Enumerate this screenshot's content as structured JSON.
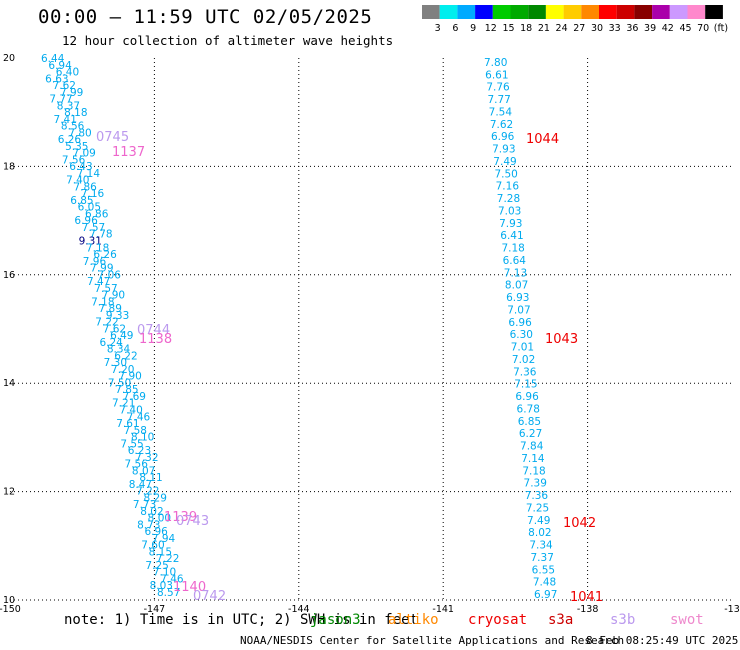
{
  "header": {
    "title": "00:00 – 11:59 UTC 02/05/2025",
    "subtitle": "12 hour collection of altimeter wave heights"
  },
  "color_scale": {
    "unit": "(ft)",
    "bins": [
      {
        "label": "3",
        "color": "#808080"
      },
      {
        "label": "6",
        "color": "#00eeee"
      },
      {
        "label": "9",
        "color": "#00aaff"
      },
      {
        "label": "12",
        "color": "#0000ff"
      },
      {
        "label": "15",
        "color": "#00cc00"
      },
      {
        "label": "18",
        "color": "#00aa00"
      },
      {
        "label": "21",
        "color": "#008800"
      },
      {
        "label": "24",
        "color": "#ffff00"
      },
      {
        "label": "27",
        "color": "#ffcc00"
      },
      {
        "label": "30",
        "color": "#ff8800"
      },
      {
        "label": "33",
        "color": "#ff0000"
      },
      {
        "label": "36",
        "color": "#cc0000"
      },
      {
        "label": "39",
        "color": "#880000"
      },
      {
        "label": "42",
        "color": "#aa00aa"
      },
      {
        "label": "45",
        "color": "#cc99ff"
      },
      {
        "label": "70",
        "color": "#ff88cc"
      },
      {
        "label": "",
        "color": "#000000"
      }
    ]
  },
  "map": {
    "lon_range": [
      -150,
      -135
    ],
    "lat_range": [
      10,
      20
    ],
    "x_ticks": [
      "-150",
      "-147",
      "-144",
      "-141",
      "-138",
      "-13"
    ],
    "y_ticks": [
      "20",
      "18",
      "16",
      "14",
      "12",
      "10"
    ],
    "track_a": {
      "color": "#00aaee",
      "values": [
        "6.44",
        "6.94",
        "6.40",
        "6.63",
        "7.62",
        "7.99",
        "7.77",
        "8.37",
        "8.18",
        "7.41",
        "8.56",
        "7.80",
        "6.26",
        "5.35",
        "7.09",
        "7.56",
        "6.43",
        "7.14",
        "7.40",
        "7.86",
        "7.16",
        "6.85",
        "6.05",
        "6.86",
        "6.96",
        "7.57",
        "7.78",
        "9.31",
        "7.18",
        "6.26",
        "7.96",
        "7.99",
        "7.06",
        "7.47",
        "7.57",
        "7.90",
        "7.18",
        "7.89",
        "9.33",
        "7.22",
        "7.62",
        "6.49",
        "6.24",
        "8.34",
        "6.22",
        "7.30",
        "7.20",
        "7.90",
        "7.50",
        "7.85",
        "7.69",
        "7.21",
        "7.40",
        "7.46",
        "7.61",
        "7.58",
        "8.10",
        "7.55",
        "6.23",
        "7.32",
        "7.56",
        "8.07",
        "8.11",
        "8.47",
        "7.22",
        "8.29",
        "7.73",
        "8.02",
        "8.00",
        "8.73",
        "6.96",
        "7.94",
        "7.60",
        "8.15",
        "7.22",
        "7.25",
        "7.10",
        "7.46",
        "8.03",
        "8.57"
      ],
      "dark_labels": [
        {
          "value": "9.31"
        }
      ]
    },
    "track_b": {
      "color": "#00aaee",
      "values": [
        "7.80",
        "6.61",
        "7.76",
        "7.77",
        "7.54",
        "7.62",
        "6.96",
        "7.93",
        "7.49",
        "7.50",
        "7.16",
        "7.28",
        "7.03",
        "7.93",
        "6.41",
        "7.18",
        "6.64",
        "7.13",
        "8.07",
        "6.93",
        "7.07",
        "6.96",
        "6.30",
        "7.01",
        "7.02",
        "7.36",
        "7.15",
        "6.96",
        "6.78",
        "6.85",
        "6.27",
        "7.84",
        "7.14",
        "7.18",
        "7.39",
        "7.36",
        "7.25",
        "7.49",
        "8.02",
        "7.34",
        "7.37",
        "6.55",
        "7.48",
        "6.97"
      ]
    },
    "pass_times_b": [
      {
        "text": "1044",
        "color": "#ee0000"
      },
      {
        "text": "1043",
        "color": "#ee0000"
      },
      {
        "text": "1042",
        "color": "#ee0000"
      },
      {
        "text": "1041",
        "color": "#ee0000"
      }
    ],
    "pass_times_a": [
      {
        "text": "0745",
        "color": "#bb99ee"
      },
      {
        "text": "1137",
        "color": "#ee66cc"
      },
      {
        "text": "0744",
        "color": "#bb99ee"
      },
      {
        "text": "1138",
        "color": "#ee66cc"
      },
      {
        "text": "1139",
        "color": "#ee66cc"
      },
      {
        "text": "0743",
        "color": "#bb99ee"
      },
      {
        "text": "1140",
        "color": "#ee66cc"
      },
      {
        "text": "0742",
        "color": "#bb99ee"
      }
    ]
  },
  "footer": {
    "note": "note: 1) Time is in UTC; 2) SWH is in feet",
    "satellites": [
      {
        "name": "jason3",
        "color": "#008800"
      },
      {
        "name": "altiko",
        "color": "#ff8800"
      },
      {
        "name": "cryosat",
        "color": "#ee0000"
      },
      {
        "name": "s3a",
        "color": "#cc0000"
      },
      {
        "name": "s3b",
        "color": "#bb99ee"
      },
      {
        "name": "swot",
        "color": "#ee88cc"
      }
    ],
    "credit": "NOAA/NESDIS Center for Satellite Applications and Research",
    "generated": "8 Feb 08:25:49 UTC 2025"
  }
}
